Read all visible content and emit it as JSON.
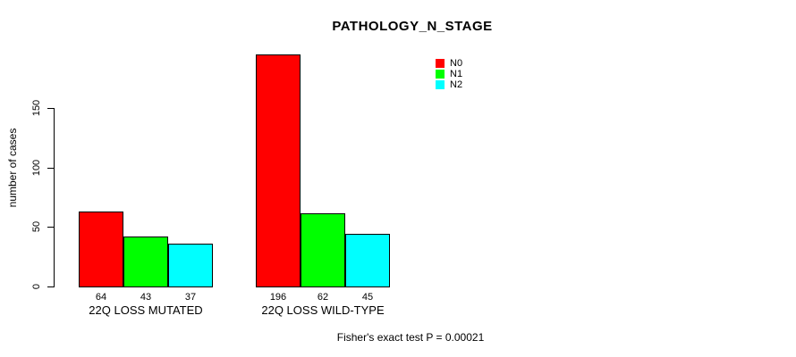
{
  "chart_data": {
    "type": "bar",
    "title": "PATHOLOGY_N_STAGE",
    "xlabel": "",
    "ylabel": "number of cases",
    "categories": [
      "22Q LOSS MUTATED",
      "22Q LOSS WILD-TYPE"
    ],
    "series": [
      {
        "name": "N0",
        "color": "#FF0000",
        "values": [
          64,
          196
        ]
      },
      {
        "name": "N1",
        "color": "#00FF00",
        "values": [
          43,
          62
        ]
      },
      {
        "name": "N2",
        "color": "#00FFFF",
        "values": [
          37,
          45
        ]
      }
    ],
    "bar_value_labels": [
      [
        "64",
        "43",
        "37"
      ],
      [
        "196",
        "62",
        "45"
      ]
    ],
    "y_ticks": [
      0,
      50,
      100,
      150
    ],
    "ylim": [
      0,
      200
    ],
    "grid": false,
    "legend_position": "top-right",
    "legend_entries": [
      "N0",
      "N1",
      "N2"
    ]
  },
  "annotation": {
    "fisher_test": "Fisher's exact test P = 0.00021"
  },
  "colors": {
    "background": "#FFFFFF",
    "axis": "#000000",
    "text": "#000000",
    "n0": "#FF0000",
    "n1": "#00FF00",
    "n2": "#00FFFF"
  }
}
